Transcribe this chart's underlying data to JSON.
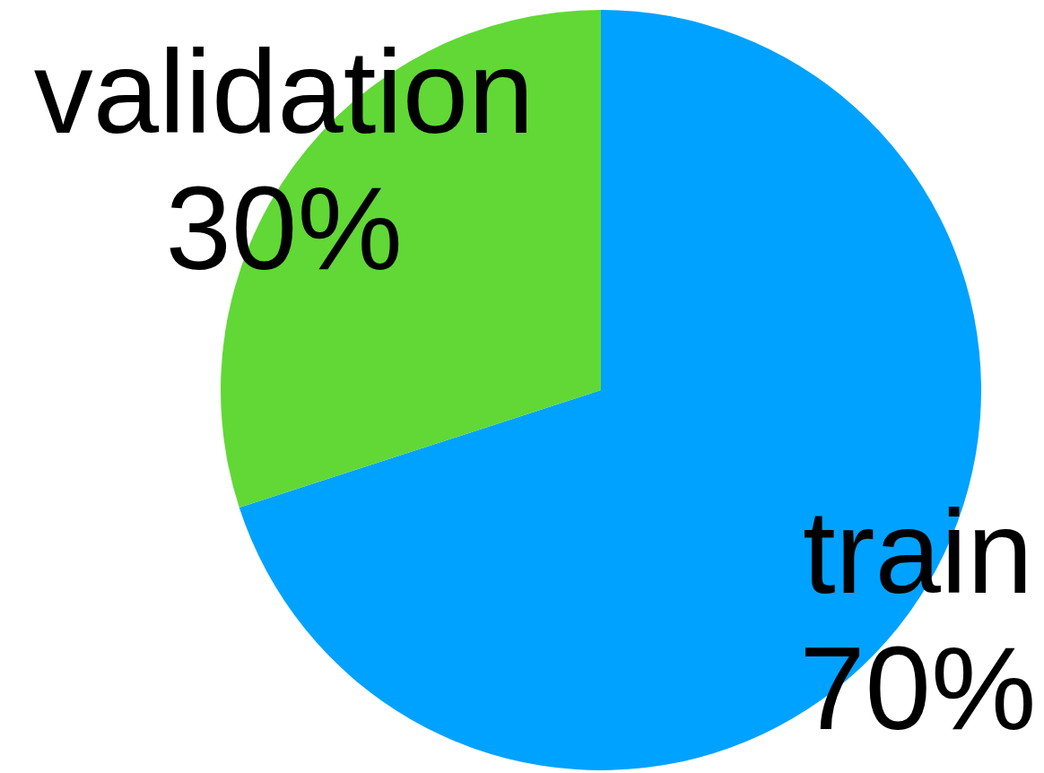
{
  "chart_data": {
    "type": "pie",
    "categories": [
      "train",
      "validation"
    ],
    "values": [
      70,
      30
    ],
    "colors": [
      "#00a2ff",
      "#61d836"
    ],
    "value_labels": [
      "70%",
      "30%"
    ]
  }
}
